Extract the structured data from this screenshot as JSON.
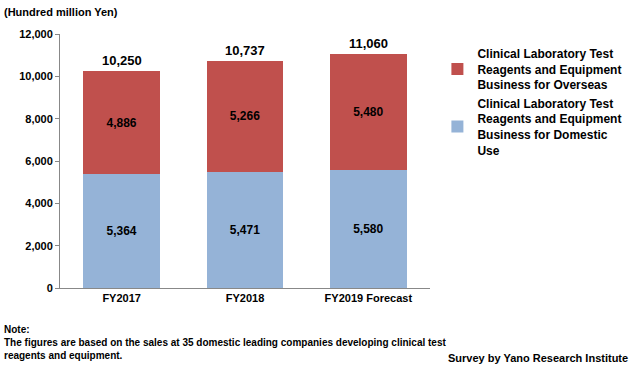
{
  "chart_data": {
    "type": "bar",
    "stacked": true,
    "data_labels": true,
    "grid": false,
    "legend": "right",
    "y_label": "(Hundred million Yen)",
    "categories": [
      "FY2017",
      "FY2018",
      "FY2019 Forecast"
    ],
    "series": [
      {
        "name": "Clinical Laboratory Test Reagents and Equipment Business for Domestic Use",
        "color": "#95B3D7",
        "values": [
          5364,
          5471,
          5580
        ],
        "value_labels": [
          "5,364",
          "5,471",
          "5,580"
        ]
      },
      {
        "name": "Clinical Laboratory Test Reagents and Equipment Business for Overseas",
        "color": "#C0504D",
        "values": [
          4886,
          5266,
          5480
        ],
        "value_labels": [
          "4,886",
          "5,266",
          "5,480"
        ]
      }
    ],
    "totals": [
      10250,
      10737,
      11060
    ],
    "total_labels": [
      "10,250",
      "10,737",
      "11,060"
    ],
    "ylim": [
      0,
      12000
    ],
    "yticks": [
      0,
      {
        "value": 2000,
        "label": "2,000"
      },
      {
        "value": 4000,
        "label": "4,000"
      },
      {
        "value": 6000,
        "label": "6,000"
      },
      {
        "value": 8000,
        "label": "8,000"
      },
      {
        "value": 10000,
        "label": "10,000"
      },
      {
        "value": 12000,
        "label": "12,000"
      }
    ],
    "note": [
      "Note:",
      "The figures are based on the sales at 35 domestic leading companies developing clinical test reagents and equipment."
    ],
    "source": "Survey by Yano Research Institute"
  }
}
